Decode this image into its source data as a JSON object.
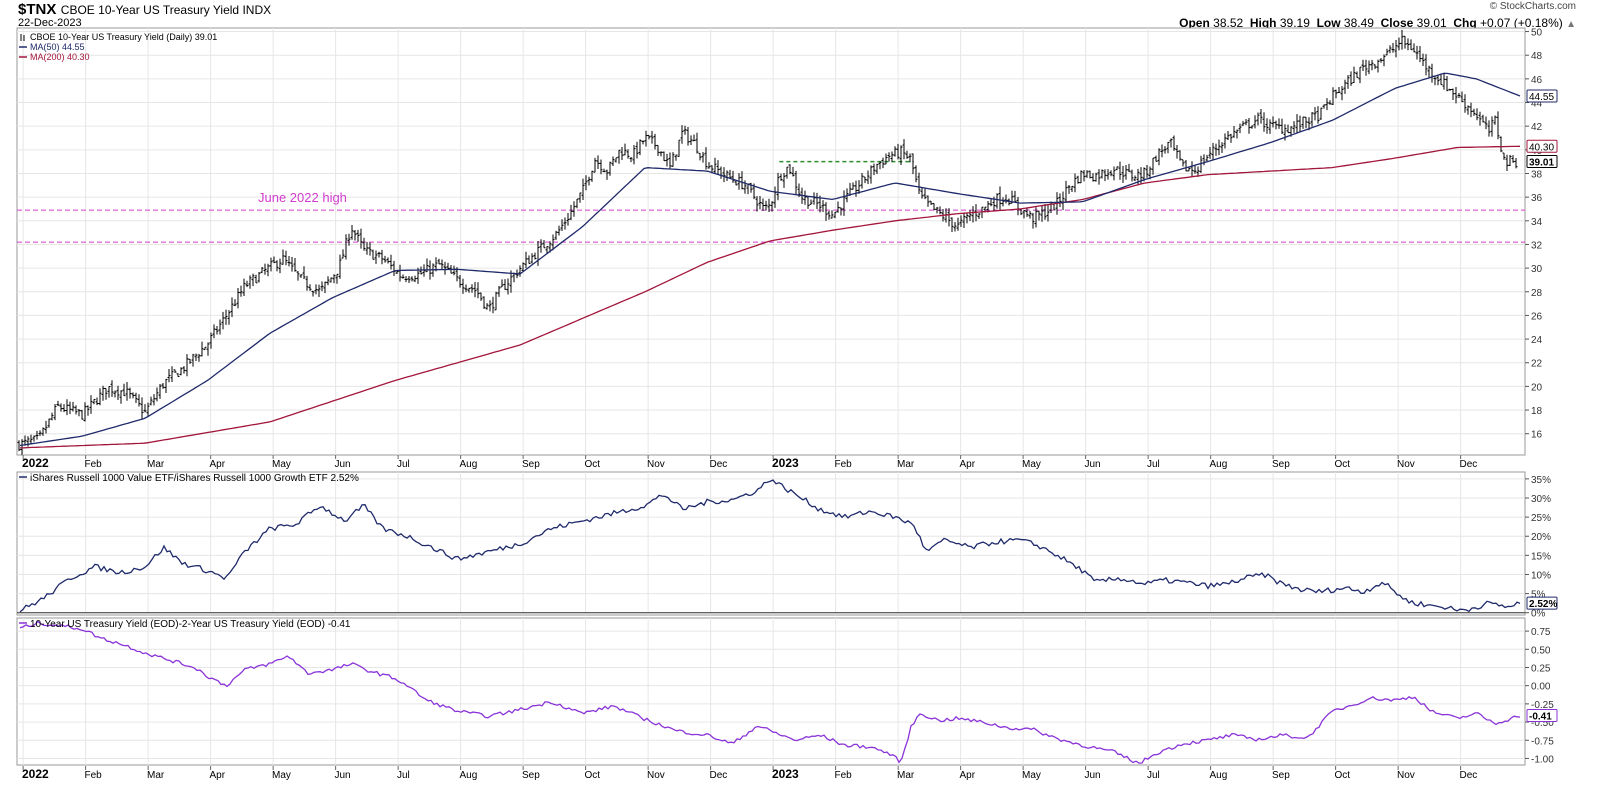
{
  "header": {
    "symbol": "$TNX",
    "description": "CBOE 10-Year US Treasury Yield INDX",
    "date": "22-Dec-2023",
    "watermark": "© StockCharts.com",
    "open_label": "Open",
    "open": "38.52",
    "high_label": "High",
    "high": "39.19",
    "low_label": "Low",
    "low": "38.49",
    "close_label": "Close",
    "close": "39.01",
    "chg_label": "Chg",
    "chg": "+0.07 (+0.18%)",
    "chg_arrow": "▲"
  },
  "colors": {
    "price": "#000000",
    "ma50": "#1f2a6b",
    "ma200": "#a3163c",
    "ratio": "#1f2a6b",
    "spread": "#8a33d8",
    "level_lines": "#d23ccf",
    "breakout": "#2e8b2e",
    "grid": "#e6e6e6"
  },
  "chart_data": [
    {
      "type": "ohlc",
      "title": "CBOE 10-Year US Treasury Yield (Daily) 39.01",
      "legend": [
        {
          "name": "CBOE 10-Year US Treasury Yield (Daily) 39.01",
          "color": "#000000"
        },
        {
          "name": "MA(50) 44.55",
          "color": "#1f2a6b"
        },
        {
          "name": "MA(200) 40.30",
          "color": "#a3163c"
        }
      ],
      "x_labels": [
        "2022",
        "Feb",
        "Mar",
        "Apr",
        "May",
        "Jun",
        "Jul",
        "Aug",
        "Sep",
        "Oct",
        "Nov",
        "Dec",
        "2023",
        "Feb",
        "Mar",
        "Apr",
        "May",
        "Jun",
        "Jul",
        "Aug",
        "Sep",
        "Oct",
        "Nov",
        "Dec"
      ],
      "yticks": [
        16,
        18,
        20,
        22,
        24,
        26,
        28,
        30,
        32,
        34,
        36,
        38,
        40,
        42,
        44,
        46,
        48,
        50
      ],
      "ylim": [
        14.2,
        50.3
      ],
      "close_anchors": [
        [
          0,
          15.1
        ],
        [
          0.3,
          15.5
        ],
        [
          0.6,
          18.3
        ],
        [
          1.0,
          17.6
        ],
        [
          1.4,
          19.9
        ],
        [
          1.7,
          19.5
        ],
        [
          2.0,
          17.8
        ],
        [
          2.3,
          20.3
        ],
        [
          2.6,
          21.5
        ],
        [
          3.0,
          23.6
        ],
        [
          3.3,
          26.0
        ],
        [
          3.6,
          28.5
        ],
        [
          3.9,
          29.7
        ],
        [
          4.2,
          30.8
        ],
        [
          4.5,
          29.0
        ],
        [
          4.8,
          28.0
        ],
        [
          5.1,
          30.0
        ],
        [
          5.3,
          33.5
        ],
        [
          5.5,
          31.5
        ],
        [
          5.8,
          30.8
        ],
        [
          6.1,
          29.3
        ],
        [
          6.4,
          29.5
        ],
        [
          6.7,
          30.3
        ],
        [
          7.0,
          29.0
        ],
        [
          7.3,
          28.1
        ],
        [
          7.5,
          26.5
        ],
        [
          7.7,
          28.2
        ],
        [
          8.0,
          30.0
        ],
        [
          8.3,
          31.5
        ],
        [
          8.6,
          33.0
        ],
        [
          8.8,
          34.6
        ],
        [
          9.0,
          36.5
        ],
        [
          9.2,
          39.2
        ],
        [
          9.4,
          38.2
        ],
        [
          9.6,
          40.0
        ],
        [
          9.8,
          39.5
        ],
        [
          10.0,
          41.0
        ],
        [
          10.2,
          40.3
        ],
        [
          10.4,
          38.5
        ],
        [
          10.6,
          41.5
        ],
        [
          10.8,
          40.5
        ],
        [
          11.0,
          38.8
        ],
        [
          11.3,
          37.8
        ],
        [
          11.6,
          37.0
        ],
        [
          11.9,
          35.0
        ],
        [
          12.0,
          35.3
        ],
        [
          12.15,
          37.8
        ],
        [
          12.3,
          38.6
        ],
        [
          12.5,
          36.0
        ],
        [
          12.8,
          35.3
        ],
        [
          13.0,
          34.5
        ],
        [
          13.2,
          35.8
        ],
        [
          13.5,
          37.5
        ],
        [
          13.7,
          38.7
        ],
        [
          13.9,
          39.5
        ],
        [
          14.1,
          39.8
        ],
        [
          14.25,
          39.2
        ],
        [
          14.4,
          36.0
        ],
        [
          14.6,
          35.0
        ],
        [
          14.8,
          34.3
        ],
        [
          15.0,
          33.5
        ],
        [
          15.2,
          34.5
        ],
        [
          15.4,
          35.0
        ],
        [
          15.6,
          35.8
        ],
        [
          15.8,
          36.0
        ],
        [
          16.0,
          35.0
        ],
        [
          16.2,
          34.2
        ],
        [
          16.4,
          34.7
        ],
        [
          16.6,
          35.5
        ],
        [
          16.8,
          37.0
        ],
        [
          17.0,
          38.0
        ],
        [
          17.2,
          37.8
        ],
        [
          17.5,
          38.4
        ],
        [
          17.8,
          37.8
        ],
        [
          18.0,
          38.0
        ],
        [
          18.2,
          39.6
        ],
        [
          18.4,
          40.6
        ],
        [
          18.6,
          38.5
        ],
        [
          18.8,
          38.3
        ],
        [
          19.0,
          39.5
        ],
        [
          19.3,
          41.0
        ],
        [
          19.6,
          42.0
        ],
        [
          19.8,
          42.6
        ],
        [
          20.0,
          42.0
        ],
        [
          20.3,
          41.8
        ],
        [
          20.6,
          42.5
        ],
        [
          20.8,
          43.0
        ],
        [
          21.0,
          44.5
        ],
        [
          21.3,
          46.0
        ],
        [
          21.5,
          47.0
        ],
        [
          21.7,
          47.5
        ],
        [
          21.9,
          48.2
        ],
        [
          22.1,
          49.2
        ],
        [
          22.3,
          48.5
        ],
        [
          22.5,
          47.0
        ],
        [
          22.7,
          46.0
        ],
        [
          22.9,
          45.0
        ],
        [
          23.1,
          44.0
        ],
        [
          23.3,
          43.0
        ],
        [
          23.5,
          41.5
        ],
        [
          23.6,
          42.5
        ],
        [
          23.75,
          39.0
        ],
        [
          24.0,
          39.01
        ]
      ],
      "ma50_anchors": [
        [
          0,
          15.0
        ],
        [
          1,
          15.8
        ],
        [
          2,
          17.3
        ],
        [
          3,
          20.5
        ],
        [
          4,
          24.5
        ],
        [
          5,
          27.5
        ],
        [
          6,
          29.8
        ],
        [
          7,
          29.9
        ],
        [
          8,
          29.5
        ],
        [
          9,
          33.5
        ],
        [
          10,
          38.5
        ],
        [
          11,
          38.2
        ],
        [
          12,
          36.5
        ],
        [
          13,
          35.8
        ],
        [
          14,
          37.2
        ],
        [
          15,
          36.3
        ],
        [
          16,
          35.5
        ],
        [
          17,
          35.6
        ],
        [
          18,
          37.5
        ],
        [
          19,
          39.0
        ],
        [
          20,
          40.6
        ],
        [
          21,
          42.5
        ],
        [
          22,
          45.2
        ],
        [
          22.8,
          46.5
        ],
        [
          23.3,
          46.0
        ],
        [
          24,
          44.55
        ]
      ],
      "ma200_anchors": [
        [
          0,
          14.8
        ],
        [
          2,
          15.2
        ],
        [
          4,
          17.0
        ],
        [
          6,
          20.5
        ],
        [
          8,
          23.5
        ],
        [
          10,
          28.0
        ],
        [
          11,
          30.5
        ],
        [
          12,
          32.3
        ],
        [
          13,
          33.2
        ],
        [
          14,
          34.0
        ],
        [
          15,
          34.6
        ],
        [
          16,
          35.0
        ],
        [
          17,
          35.8
        ],
        [
          18,
          37.2
        ],
        [
          19,
          37.9
        ],
        [
          20,
          38.2
        ],
        [
          21,
          38.5
        ],
        [
          22,
          39.3
        ],
        [
          23,
          40.2
        ],
        [
          24,
          40.3
        ]
      ],
      "annotations": {
        "june_2022_high_label": "June 2022 high",
        "june_2022_high_level": 34.9,
        "lower_level": 32.2,
        "breakout_level": 39.0,
        "breakout_start_month": 12.15,
        "breakout_end_month": 14.3
      },
      "end_labels": {
        "ma50": "44.55",
        "ma200": "40.30",
        "close": "39.01"
      }
    },
    {
      "type": "line",
      "title": "iShares Russell 1000 Value ETF/iShares Russell 1000 Growth ETF 2.52%",
      "yticks": [
        0,
        5,
        10,
        15,
        20,
        25,
        30,
        35
      ],
      "ytick_labels": [
        "0%",
        "5%",
        "10%",
        "15%",
        "20%",
        "25%",
        "30%",
        "35%"
      ],
      "ylim": [
        -0.6,
        36.8
      ],
      "anchors": [
        [
          0,
          0.5
        ],
        [
          0.4,
          4.0
        ],
        [
          0.8,
          9.0
        ],
        [
          1.2,
          12.0
        ],
        [
          1.6,
          10.5
        ],
        [
          2.0,
          12.0
        ],
        [
          2.3,
          17.0
        ],
        [
          2.6,
          13.0
        ],
        [
          3.0,
          11.0
        ],
        [
          3.3,
          9.0
        ],
        [
          3.6,
          16.0
        ],
        [
          4.0,
          22.0
        ],
        [
          4.4,
          23.0
        ],
        [
          4.8,
          28.0
        ],
        [
          5.2,
          24.0
        ],
        [
          5.5,
          28.0
        ],
        [
          5.8,
          22.0
        ],
        [
          6.2,
          20.0
        ],
        [
          6.6,
          17.0
        ],
        [
          7.0,
          14.0
        ],
        [
          7.5,
          16.0
        ],
        [
          8.0,
          18.0
        ],
        [
          8.5,
          22.0
        ],
        [
          9.0,
          24.0
        ],
        [
          9.5,
          26.0
        ],
        [
          10.0,
          28.0
        ],
        [
          10.3,
          31.0
        ],
        [
          10.6,
          27.0
        ],
        [
          11.0,
          29.0
        ],
        [
          11.4,
          29.5
        ],
        [
          11.8,
          32.0
        ],
        [
          12.0,
          35.0
        ],
        [
          12.2,
          33.0
        ],
        [
          12.5,
          30.0
        ],
        [
          12.8,
          27.0
        ],
        [
          13.2,
          25.0
        ],
        [
          13.6,
          26.5
        ],
        [
          14.0,
          25.0
        ],
        [
          14.3,
          23.0
        ],
        [
          14.5,
          16.0
        ],
        [
          14.8,
          19.0
        ],
        [
          15.2,
          17.0
        ],
        [
          15.6,
          18.5
        ],
        [
          16.0,
          19.0
        ],
        [
          16.3,
          17.5
        ],
        [
          16.6,
          15.0
        ],
        [
          17.0,
          11.0
        ],
        [
          17.2,
          8.0
        ],
        [
          17.6,
          9.0
        ],
        [
          18.0,
          7.5
        ],
        [
          18.3,
          8.5
        ],
        [
          18.6,
          8.0
        ],
        [
          19.0,
          7.0
        ],
        [
          19.3,
          7.5
        ],
        [
          19.6,
          9.0
        ],
        [
          19.9,
          10.0
        ],
        [
          20.2,
          7.5
        ],
        [
          20.5,
          6.0
        ],
        [
          20.8,
          5.5
        ],
        [
          21.2,
          6.5
        ],
        [
          21.5,
          5.5
        ],
        [
          21.8,
          8.0
        ],
        [
          22.0,
          5.5
        ],
        [
          22.2,
          3.0
        ],
        [
          22.5,
          2.0
        ],
        [
          22.8,
          1.5
        ],
        [
          23.0,
          0.6
        ],
        [
          23.2,
          1.0
        ],
        [
          23.5,
          2.5
        ],
        [
          23.8,
          1.5
        ],
        [
          24.0,
          2.52
        ]
      ],
      "end_label": "2.52%"
    },
    {
      "type": "line",
      "title": "10-Year US Treasury Yield (EOD)-2-Year US Treasury Yield (EOD) -0.41",
      "yticks": [
        -1.0,
        -0.75,
        -0.5,
        -0.25,
        0.0,
        0.25,
        0.5,
        0.75
      ],
      "ytick_labels": [
        "-1.00",
        "-0.75",
        "-0.50",
        "-0.25",
        "0.00",
        "0.25",
        "0.50",
        "0.75"
      ],
      "ylim": [
        -1.09,
        0.93
      ],
      "anchors": [
        [
          0,
          0.79
        ],
        [
          0.3,
          0.86
        ],
        [
          0.6,
          0.83
        ],
        [
          1.0,
          0.78
        ],
        [
          1.3,
          0.65
        ],
        [
          1.6,
          0.58
        ],
        [
          2.0,
          0.45
        ],
        [
          2.4,
          0.35
        ],
        [
          2.8,
          0.25
        ],
        [
          3.0,
          0.13
        ],
        [
          3.3,
          0.0
        ],
        [
          3.6,
          0.22
        ],
        [
          4.0,
          0.3
        ],
        [
          4.3,
          0.41
        ],
        [
          4.6,
          0.17
        ],
        [
          5.0,
          0.22
        ],
        [
          5.3,
          0.3
        ],
        [
          5.6,
          0.2
        ],
        [
          6.0,
          0.1
        ],
        [
          6.2,
          0.0
        ],
        [
          6.5,
          -0.2
        ],
        [
          7.0,
          -0.35
        ],
        [
          7.5,
          -0.42
        ],
        [
          8.0,
          -0.33
        ],
        [
          8.5,
          -0.22
        ],
        [
          9.0,
          -0.38
        ],
        [
          9.5,
          -0.28
        ],
        [
          10.0,
          -0.46
        ],
        [
          10.5,
          -0.62
        ],
        [
          11.0,
          -0.68
        ],
        [
          11.4,
          -0.8
        ],
        [
          11.8,
          -0.55
        ],
        [
          12.0,
          -0.62
        ],
        [
          12.4,
          -0.75
        ],
        [
          12.8,
          -0.68
        ],
        [
          13.2,
          -0.82
        ],
        [
          13.6,
          -0.84
        ],
        [
          13.9,
          -0.93
        ],
        [
          14.1,
          -1.05
        ],
        [
          14.25,
          -0.58
        ],
        [
          14.4,
          -0.38
        ],
        [
          14.7,
          -0.48
        ],
        [
          15.0,
          -0.45
        ],
        [
          15.4,
          -0.5
        ],
        [
          15.8,
          -0.58
        ],
        [
          16.2,
          -0.6
        ],
        [
          16.6,
          -0.73
        ],
        [
          17.0,
          -0.82
        ],
        [
          17.5,
          -0.91
        ],
        [
          17.9,
          -1.07
        ],
        [
          18.2,
          -0.92
        ],
        [
          18.6,
          -0.8
        ],
        [
          19.0,
          -0.75
        ],
        [
          19.4,
          -0.68
        ],
        [
          19.8,
          -0.74
        ],
        [
          20.2,
          -0.68
        ],
        [
          20.6,
          -0.72
        ],
        [
          21.0,
          -0.35
        ],
        [
          21.3,
          -0.27
        ],
        [
          21.6,
          -0.17
        ],
        [
          22.0,
          -0.2
        ],
        [
          22.3,
          -0.15
        ],
        [
          22.6,
          -0.36
        ],
        [
          23.0,
          -0.45
        ],
        [
          23.3,
          -0.38
        ],
        [
          23.6,
          -0.52
        ],
        [
          24.0,
          -0.41
        ]
      ],
      "end_label": "-0.41"
    }
  ]
}
